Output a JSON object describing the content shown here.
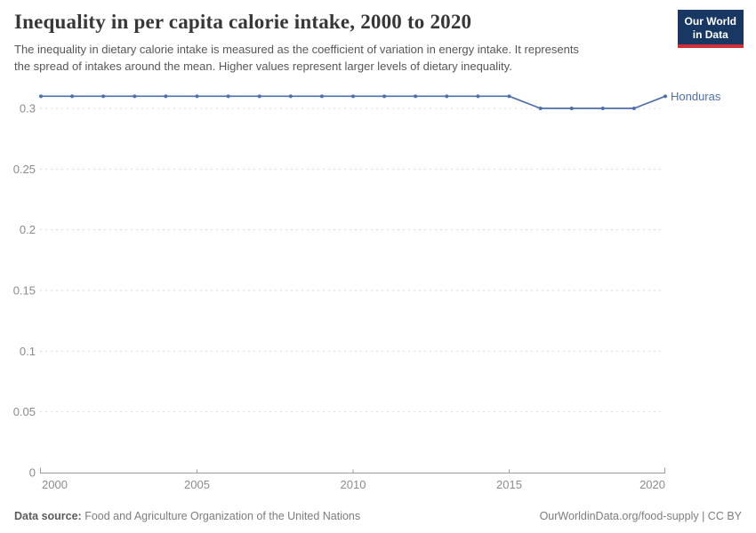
{
  "header": {
    "title": "Inequality in per capita calorie intake, 2000 to 2020",
    "subtitle_lines": [
      "The inequality in dietary calorie intake is measured as the coefficient of variation in energy intake. It represents",
      "the spread of intakes around the mean. Higher values represent larger levels of dietary inequality."
    ]
  },
  "logo": {
    "line1": "Our World",
    "line2": "in Data"
  },
  "chart_data": {
    "type": "line",
    "title": "Inequality in per capita calorie intake, 2000 to 2020",
    "xlabel": "",
    "ylabel": "",
    "xlim": [
      2000,
      2020
    ],
    "ylim": [
      0,
      0.31
    ],
    "grid": "horizontal-dashed",
    "legend": "line-end-label",
    "x_ticks": {
      "values": [
        2000,
        2005,
        2010,
        2015,
        2020
      ],
      "labels": [
        "2000",
        "2005",
        "2010",
        "2015",
        "2020"
      ]
    },
    "y_ticks": {
      "values": [
        0,
        0.05,
        0.1,
        0.15,
        0.2,
        0.25,
        0.3
      ],
      "labels": [
        "0",
        "0.05",
        "0.1",
        "0.15",
        "0.2",
        "0.25",
        "0.3"
      ]
    },
    "series": [
      {
        "name": "Honduras",
        "color": "#4d6fab",
        "x": [
          2000,
          2001,
          2002,
          2003,
          2004,
          2005,
          2006,
          2007,
          2008,
          2009,
          2010,
          2011,
          2012,
          2013,
          2014,
          2015,
          2016,
          2017,
          2018,
          2019,
          2020
        ],
        "values": [
          0.31,
          0.31,
          0.31,
          0.31,
          0.31,
          0.31,
          0.31,
          0.31,
          0.31,
          0.31,
          0.31,
          0.31,
          0.31,
          0.31,
          0.31,
          0.31,
          0.3,
          0.3,
          0.3,
          0.3,
          0.31
        ]
      }
    ]
  },
  "footer": {
    "source_label": "Data source:",
    "source_text": "Food and Agriculture Organization of the United Nations",
    "credit": "OurWorldinData.org/food-supply | CC BY"
  },
  "colors": {
    "accent_line": "#4d6fab",
    "logo_bg": "#183863",
    "logo_accent": "#cf3038",
    "grid": "#d9d9d9",
    "axis": "#9c9c9c",
    "tick_label": "#8c8c8c",
    "title": "#373737",
    "subtitle": "#575757",
    "footer_text": "#7d7d7d"
  }
}
